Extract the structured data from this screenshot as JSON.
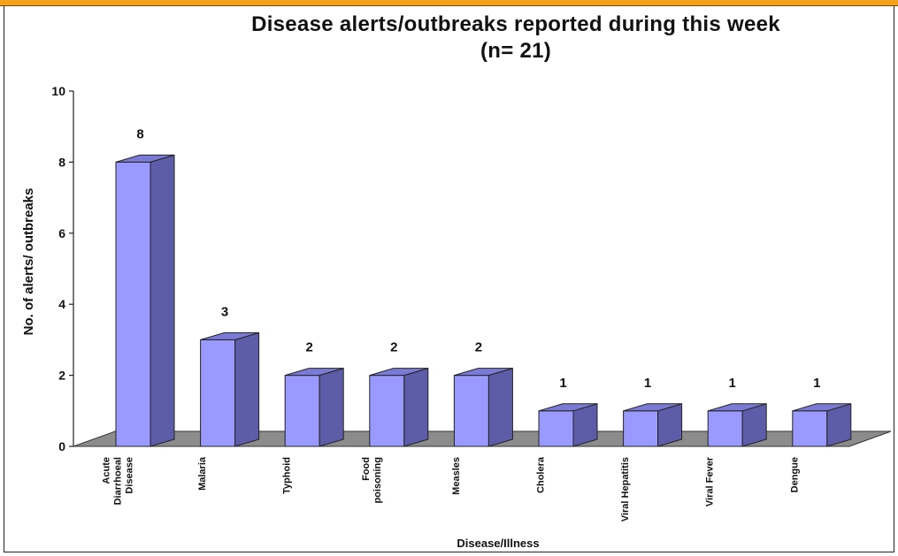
{
  "chart_data": {
    "type": "bar",
    "title": "Disease alerts/outbreaks reported during this week",
    "subtitle": "(n= 21)",
    "xlabel": "Disease/Illness",
    "ylabel": "No. of alerts/ outbreaks",
    "ylim": [
      0,
      10
    ],
    "yticks": [
      "0",
      "2",
      "4",
      "6",
      "8",
      "10"
    ],
    "categories": [
      [
        "Acute",
        "Diarrhoeal",
        "Disease"
      ],
      [
        "Malaria"
      ],
      [
        "Typhoid"
      ],
      [
        "Food",
        "poisoning"
      ],
      [
        "Measles"
      ],
      [
        "Cholera"
      ],
      [
        "Viral Hepatitis"
      ],
      [
        "Viral Fever"
      ],
      [
        "Dengue"
      ]
    ],
    "values": [
      8,
      3,
      2,
      2,
      2,
      1,
      1,
      1,
      1
    ],
    "data_labels": [
      "8",
      "3",
      "2",
      "2",
      "2",
      "1",
      "1",
      "1",
      "1"
    ],
    "style": "3d-column",
    "colors": {
      "bar_front": "#9999ff",
      "bar_side": "#5c5ca8",
      "bar_top": "#7b7bd6",
      "floor": "#8c8c8c"
    }
  }
}
